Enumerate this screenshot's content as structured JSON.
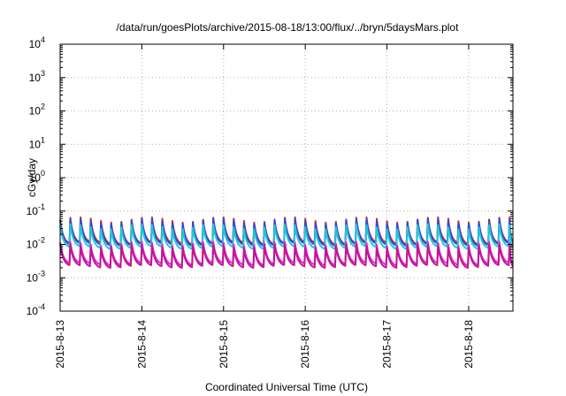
{
  "chart_data": {
    "type": "line",
    "title": "/data/run/goesPlots/archive/2015-08-18/13:00/flux/../bryn/5daysMars.plot",
    "xlabel": "Coordinated Universal Time (UTC)",
    "ylabel": "cGy/day",
    "y_scale": "log",
    "ylim": [
      0.0001,
      10000
    ],
    "y_ticks": [
      {
        "exp": "-4",
        "value": 0.0001
      },
      {
        "exp": "-3",
        "value": 0.001
      },
      {
        "exp": "-2",
        "value": 0.01
      },
      {
        "exp": "-1",
        "value": 0.1
      },
      {
        "exp": "0",
        "value": 1
      },
      {
        "exp": "1",
        "value": 10
      },
      {
        "exp": "2",
        "value": 100
      },
      {
        "exp": "3",
        "value": 1000
      },
      {
        "exp": "4",
        "value": 10000
      }
    ],
    "y_tick_base": "10",
    "x_range": [
      "2015-08-13",
      "2015-08-18 13:00"
    ],
    "x_tick_labels": [
      "2015-8-13",
      "2015-8-14",
      "2015-8-15",
      "2015-8-16",
      "2015-8-17",
      "2015-8-18"
    ],
    "grid": true,
    "sawtooth_period_hours": 3,
    "series": [
      {
        "color": "#e02020",
        "peak_max": 0.065,
        "peak_min": 0.045,
        "trough": 0.011
      },
      {
        "color": "#2050e0",
        "peak_max": 0.058,
        "peak_min": 0.04,
        "trough": 0.01
      },
      {
        "color": "#20c8d8",
        "peak_max": 0.04,
        "peak_min": 0.028,
        "trough": 0.008
      },
      {
        "color": "#e020e0",
        "peak_max": 0.012,
        "peak_min": 0.009,
        "trough": 0.0026
      },
      {
        "color": "#c01890",
        "peak_max": 0.01,
        "peak_min": 0.0075,
        "trough": 0.0022
      }
    ]
  }
}
